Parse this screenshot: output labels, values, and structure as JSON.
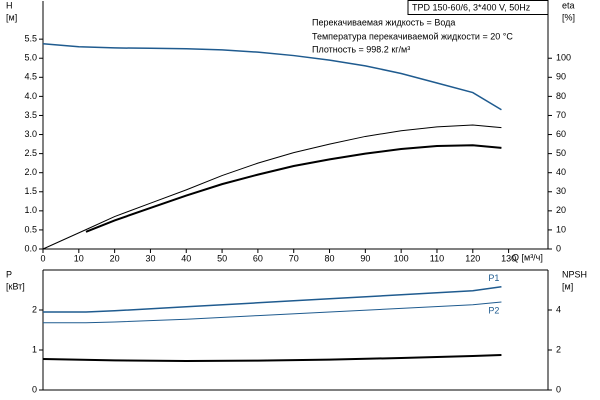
{
  "chart_data": [
    {
      "type": "line",
      "title": "TPD 150-60/6, 3*400 V, 50Hz",
      "annotations": [
        "Перекачиваемая жидкость = Вода",
        "Температура перекачиваемой жидкости = 20 °C",
        "Плотность = 998.2 кг/м³"
      ],
      "ylabel": [
        "H",
        "[м]"
      ],
      "y2label": [
        "eta",
        "[%]"
      ],
      "xlabel": "Q [м³/ч]",
      "xlim": [
        0,
        141
      ],
      "xticks": [
        0,
        10,
        20,
        30,
        40,
        50,
        60,
        70,
        80,
        90,
        100,
        110,
        120,
        130
      ],
      "ylim": [
        0,
        6.5
      ],
      "yticks": [
        {
          "value": 0,
          "label": "0.0"
        },
        0.5,
        {
          "value": 1,
          "label": "1.0"
        },
        1.5,
        {
          "value": 2,
          "label": "2.0"
        },
        2.5,
        {
          "value": 3,
          "label": "3.0"
        },
        3.5,
        {
          "value": 4,
          "label": "4.0"
        },
        4.5,
        {
          "value": 5,
          "label": "5.0"
        },
        5.5
      ],
      "y2lim": [
        0,
        130
      ],
      "y2ticks": [
        0,
        10,
        20,
        30,
        40,
        50,
        60,
        70,
        80,
        90,
        100
      ],
      "series": [
        {
          "color": "#1f5b8f",
          "linewidth": 1.5,
          "x": [
            0,
            10,
            20,
            30,
            40,
            50,
            60,
            70,
            80,
            90,
            100,
            110,
            120,
            128
          ],
          "values": [
            5.38,
            5.3,
            5.27,
            5.26,
            5.25,
            5.22,
            5.16,
            5.07,
            4.95,
            4.8,
            4.6,
            4.35,
            4.1,
            3.65
          ]
        },
        {
          "color": "#000000",
          "linewidth": 1,
          "axis": "y2",
          "x": [
            0,
            13,
            20,
            30,
            40,
            50,
            60,
            70,
            80,
            90,
            100,
            110,
            120,
            128
          ],
          "values": [
            0,
            11,
            17,
            24,
            31,
            38.5,
            45,
            50.5,
            55,
            59,
            62,
            64,
            65,
            63.6
          ]
        },
        {
          "color": "#000000",
          "linewidth": 2,
          "axis": "y2",
          "x": [
            12,
            20,
            30,
            40,
            50,
            60,
            70,
            80,
            90,
            100,
            110,
            120,
            128
          ],
          "values": [
            9,
            15,
            21.5,
            28,
            34,
            39,
            43.5,
            47,
            50,
            52.4,
            54,
            54.4,
            53
          ]
        }
      ]
    },
    {
      "type": "line",
      "ylabel": [
        "P",
        "[кВт]"
      ],
      "y2label": [
        "NPSH",
        "[м]"
      ],
      "xlim": [
        0,
        141
      ],
      "ylim": [
        0,
        3
      ],
      "yticks": [
        0,
        1,
        2
      ],
      "y2lim": [
        0,
        6
      ],
      "y2ticks": [
        0,
        2,
        4
      ],
      "series": [
        {
          "name": "P1",
          "color": "#1f5b8f",
          "linewidth": 1.5,
          "x": [
            0,
            12,
            20,
            40,
            60,
            80,
            100,
            120,
            128
          ],
          "values": [
            1.95,
            1.95,
            1.98,
            2.08,
            2.18,
            2.28,
            2.38,
            2.48,
            2.58
          ]
        },
        {
          "name": "P2",
          "color": "#1f5b8f",
          "linewidth": 1,
          "x": [
            0,
            12,
            20,
            40,
            60,
            80,
            100,
            120,
            128
          ],
          "values": [
            1.68,
            1.68,
            1.7,
            1.77,
            1.86,
            1.95,
            2.04,
            2.13,
            2.2
          ]
        },
        {
          "color": "#000000",
          "linewidth": 2,
          "axis": "y2",
          "x": [
            0,
            20,
            40,
            60,
            80,
            100,
            120,
            128
          ],
          "values": [
            1.55,
            1.48,
            1.45,
            1.47,
            1.52,
            1.6,
            1.7,
            1.75
          ]
        }
      ]
    }
  ]
}
